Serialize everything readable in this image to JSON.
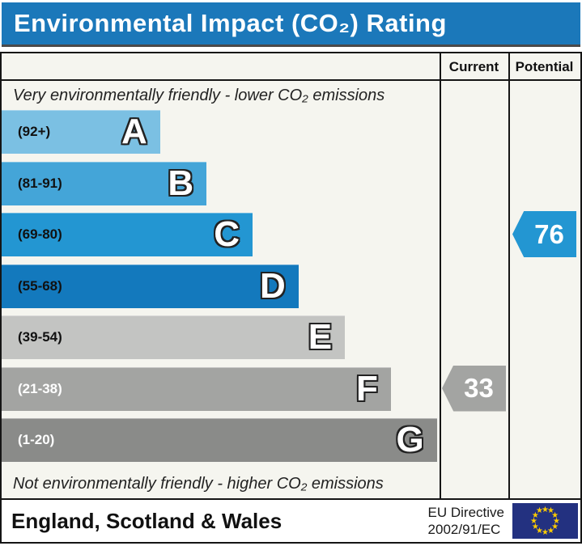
{
  "title": "Environmental Impact (CO₂) Rating",
  "colors": {
    "title_bar_bg": "#1b78ba",
    "chart_bg": "#f5f5ef",
    "border": "#151515"
  },
  "columns": {
    "current": "Current",
    "potential": "Potential"
  },
  "top_note": "Very environmentally friendly - lower CO₂ emissions",
  "bottom_note": "Not environmentally friendly - higher CO₂ emissions",
  "chart_data": {
    "type": "bar",
    "title": "Environmental Impact (CO₂) Rating",
    "categories": [
      "A",
      "B",
      "C",
      "D",
      "E",
      "F",
      "G"
    ],
    "bands": [
      {
        "letter": "A",
        "range": "(92+)",
        "color": "#7bc0e3",
        "width_pct": 36.2,
        "label_color": "#111111"
      },
      {
        "letter": "B",
        "range": "(81-91)",
        "color": "#44a5d8",
        "width_pct": 46.8,
        "label_color": "#111111"
      },
      {
        "letter": "C",
        "range": "(69-80)",
        "color": "#2396d2",
        "width_pct": 57.3,
        "label_color": "#111111"
      },
      {
        "letter": "D",
        "range": "(55-68)",
        "color": "#1379bd",
        "width_pct": 67.8,
        "label_color": "#111111"
      },
      {
        "letter": "E",
        "range": "(39-54)",
        "color": "#c3c4c2",
        "width_pct": 78.4,
        "label_color": "#111111"
      },
      {
        "letter": "F",
        "range": "(21-38)",
        "color": "#a3a4a2",
        "width_pct": 88.9,
        "label_color": "#ffffff"
      },
      {
        "letter": "G",
        "range": "(1-20)",
        "color": "#8a8b89",
        "width_pct": 99.4,
        "label_color": "#ffffff"
      }
    ],
    "current": {
      "value": 33,
      "band": "F",
      "color": "#a3a4a2"
    },
    "potential": {
      "value": 76,
      "band": "C",
      "color": "#2396d2"
    }
  },
  "footer": {
    "region": "England, Scotland & Wales",
    "directive_line1": "EU Directive",
    "directive_line2": "2002/91/EC",
    "eu_flag": {
      "bg": "#233180",
      "star_color": "#ffcc00",
      "star_count": 12
    }
  }
}
